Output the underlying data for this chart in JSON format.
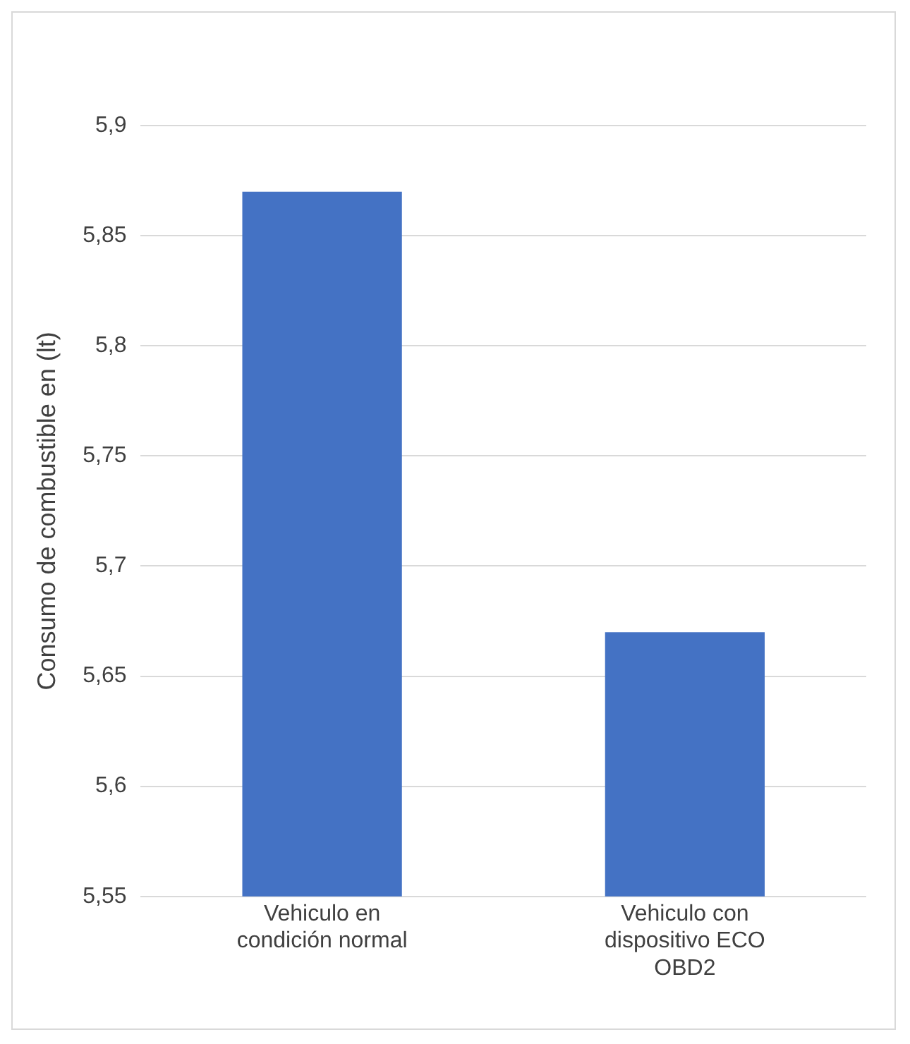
{
  "chart_data": {
    "type": "bar",
    "ylabel": "Consumo de combustible en (lt)",
    "categories": [
      "Vehiculo en condición normal",
      "Vehiculo con dispositivo ECO OBD2"
    ],
    "values": [
      5.87,
      5.67
    ],
    "color": "#4472c4",
    "ylim": [
      5.55,
      5.9
    ],
    "yticks": [
      {
        "value": 5.55,
        "label": "5,55"
      },
      {
        "value": 5.6,
        "label": "5,6"
      },
      {
        "value": 5.65,
        "label": "5,65"
      },
      {
        "value": 5.7,
        "label": "5,7"
      },
      {
        "value": 5.75,
        "label": "5,75"
      },
      {
        "value": 5.8,
        "label": "5,8"
      },
      {
        "value": 5.85,
        "label": "5,85"
      },
      {
        "value": 5.9,
        "label": "5,9"
      }
    ],
    "grid": "y",
    "legend": false
  }
}
